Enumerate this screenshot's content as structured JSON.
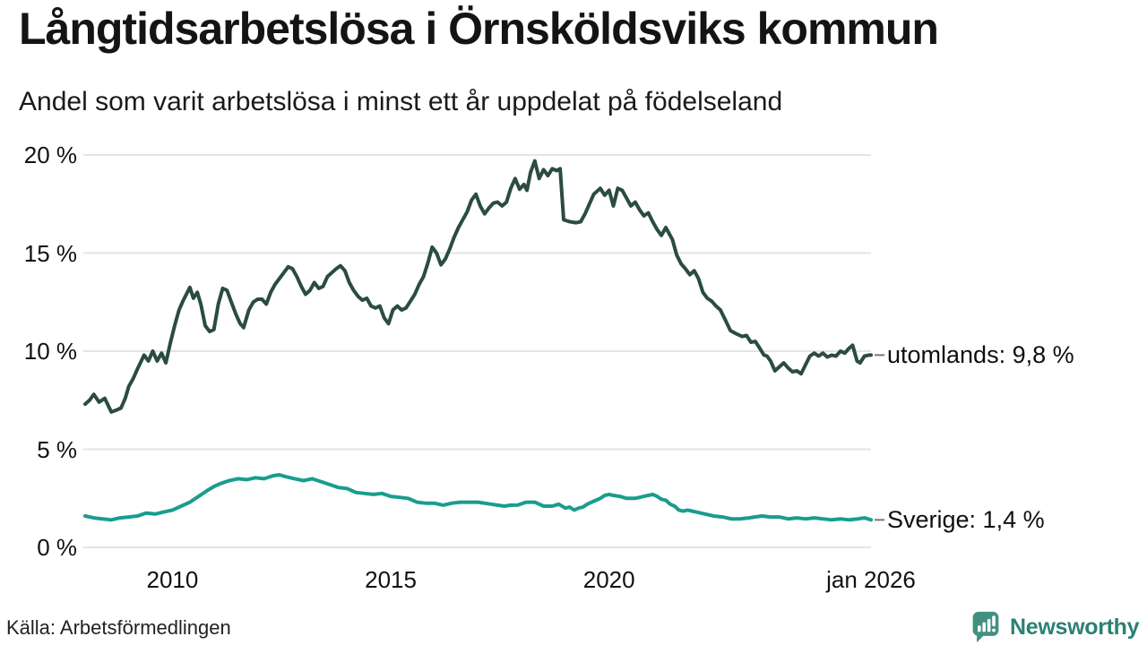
{
  "header": {
    "title": "Långtidsarbetslösa i Örnsköldsviks kommun",
    "subtitle": "Andel som varit arbetslösa i minst ett år uppdelat på födelseland"
  },
  "footer": {
    "source": "Källa: Arbetsförmedlingen",
    "brand": "Newsworthy"
  },
  "colors": {
    "utomlands": "#2b4c40",
    "sverige": "#199d8d",
    "grid": "#e4e4e4",
    "end_dash": "#777777",
    "text": "#111111",
    "brand_icon": "#40917f",
    "brand_text": "#2b8173"
  },
  "chart_data": {
    "type": "line",
    "title": "Långtidsarbetslösa i Örnsköldsviks kommun",
    "subtitle": "Andel som varit arbetslösa i minst ett år uppdelat på födelseland",
    "xlabel": "",
    "ylabel": "",
    "xlim": [
      2008,
      2026.0
    ],
    "ylim": [
      0,
      20
    ],
    "grid": "horizontal-only",
    "yticks": [
      {
        "value": 0,
        "label": "0 %"
      },
      {
        "value": 5,
        "label": "5 %"
      },
      {
        "value": 10,
        "label": "10 %"
      },
      {
        "value": 15,
        "label": "15 %"
      },
      {
        "value": 20,
        "label": "20 %"
      }
    ],
    "xticks": [
      {
        "value": 2010,
        "label": "2010"
      },
      {
        "value": 2015,
        "label": "2015"
      },
      {
        "value": 2020,
        "label": "2020"
      },
      {
        "value": 2026,
        "label": "jan 2026"
      }
    ],
    "series": [
      {
        "name": "utomlands",
        "end_label": "utomlands: 9,8 %",
        "final_value_percent": 9.8,
        "color_key": "utomlands",
        "points": [
          [
            2008.0,
            7.3
          ],
          [
            2008.1,
            7.5
          ],
          [
            2008.2,
            7.8
          ],
          [
            2008.32,
            7.4
          ],
          [
            2008.45,
            7.6
          ],
          [
            2008.6,
            6.9
          ],
          [
            2008.72,
            7.0
          ],
          [
            2008.82,
            7.1
          ],
          [
            2008.92,
            7.6
          ],
          [
            2009.0,
            8.2
          ],
          [
            2009.1,
            8.6
          ],
          [
            2009.2,
            9.1
          ],
          [
            2009.35,
            9.8
          ],
          [
            2009.45,
            9.5
          ],
          [
            2009.55,
            10.0
          ],
          [
            2009.65,
            9.5
          ],
          [
            2009.75,
            9.9
          ],
          [
            2009.85,
            9.4
          ],
          [
            2009.95,
            10.4
          ],
          [
            2010.05,
            11.3
          ],
          [
            2010.15,
            12.1
          ],
          [
            2010.25,
            12.6
          ],
          [
            2010.4,
            13.25
          ],
          [
            2010.48,
            12.7
          ],
          [
            2010.57,
            13.0
          ],
          [
            2010.65,
            12.4
          ],
          [
            2010.75,
            11.3
          ],
          [
            2010.85,
            11.0
          ],
          [
            2010.95,
            11.1
          ],
          [
            2011.05,
            12.4
          ],
          [
            2011.15,
            13.2
          ],
          [
            2011.25,
            13.1
          ],
          [
            2011.35,
            12.5
          ],
          [
            2011.45,
            11.9
          ],
          [
            2011.55,
            11.4
          ],
          [
            2011.63,
            11.2
          ],
          [
            2011.75,
            12.1
          ],
          [
            2011.85,
            12.5
          ],
          [
            2011.95,
            12.65
          ],
          [
            2012.05,
            12.65
          ],
          [
            2012.15,
            12.4
          ],
          [
            2012.25,
            13.0
          ],
          [
            2012.35,
            13.4
          ],
          [
            2012.45,
            13.7
          ],
          [
            2012.55,
            14.0
          ],
          [
            2012.65,
            14.3
          ],
          [
            2012.75,
            14.2
          ],
          [
            2012.85,
            13.8
          ],
          [
            2012.95,
            13.3
          ],
          [
            2013.05,
            12.9
          ],
          [
            2013.15,
            13.1
          ],
          [
            2013.25,
            13.5
          ],
          [
            2013.35,
            13.2
          ],
          [
            2013.45,
            13.3
          ],
          [
            2013.55,
            13.8
          ],
          [
            2013.65,
            14.0
          ],
          [
            2013.75,
            14.2
          ],
          [
            2013.85,
            14.35
          ],
          [
            2013.95,
            14.1
          ],
          [
            2014.05,
            13.5
          ],
          [
            2014.15,
            13.1
          ],
          [
            2014.25,
            12.8
          ],
          [
            2014.35,
            12.6
          ],
          [
            2014.45,
            12.7
          ],
          [
            2014.55,
            12.3
          ],
          [
            2014.65,
            12.2
          ],
          [
            2014.75,
            12.3
          ],
          [
            2014.85,
            11.7
          ],
          [
            2014.95,
            11.4
          ],
          [
            2015.05,
            12.1
          ],
          [
            2015.15,
            12.3
          ],
          [
            2015.25,
            12.1
          ],
          [
            2015.35,
            12.2
          ],
          [
            2015.45,
            12.55
          ],
          [
            2015.55,
            12.9
          ],
          [
            2015.65,
            13.4
          ],
          [
            2015.75,
            13.8
          ],
          [
            2015.85,
            14.5
          ],
          [
            2015.95,
            15.3
          ],
          [
            2016.05,
            15.0
          ],
          [
            2016.15,
            14.4
          ],
          [
            2016.25,
            14.7
          ],
          [
            2016.35,
            15.2
          ],
          [
            2016.45,
            15.8
          ],
          [
            2016.55,
            16.3
          ],
          [
            2016.65,
            16.7
          ],
          [
            2016.75,
            17.1
          ],
          [
            2016.85,
            17.7
          ],
          [
            2016.95,
            18.0
          ],
          [
            2017.05,
            17.4
          ],
          [
            2017.15,
            17.0
          ],
          [
            2017.25,
            17.3
          ],
          [
            2017.35,
            17.55
          ],
          [
            2017.45,
            17.6
          ],
          [
            2017.55,
            17.4
          ],
          [
            2017.65,
            17.6
          ],
          [
            2017.75,
            18.3
          ],
          [
            2017.85,
            18.8
          ],
          [
            2017.95,
            18.25
          ],
          [
            2018.05,
            18.5
          ],
          [
            2018.12,
            18.2
          ],
          [
            2018.2,
            19.1
          ],
          [
            2018.3,
            19.7
          ],
          [
            2018.4,
            18.8
          ],
          [
            2018.5,
            19.25
          ],
          [
            2018.6,
            18.95
          ],
          [
            2018.7,
            19.3
          ],
          [
            2018.8,
            19.2
          ],
          [
            2018.88,
            19.3
          ],
          [
            2018.96,
            16.7
          ],
          [
            2019.1,
            16.6
          ],
          [
            2019.25,
            16.55
          ],
          [
            2019.35,
            16.6
          ],
          [
            2019.45,
            17.0
          ],
          [
            2019.55,
            17.5
          ],
          [
            2019.65,
            18.0
          ],
          [
            2019.8,
            18.3
          ],
          [
            2019.9,
            17.95
          ],
          [
            2020.0,
            18.2
          ],
          [
            2020.1,
            17.4
          ],
          [
            2020.2,
            18.3
          ],
          [
            2020.3,
            18.2
          ],
          [
            2020.4,
            17.8
          ],
          [
            2020.5,
            17.4
          ],
          [
            2020.6,
            17.6
          ],
          [
            2020.7,
            17.2
          ],
          [
            2020.8,
            16.9
          ],
          [
            2020.9,
            17.05
          ],
          [
            2021.0,
            16.6
          ],
          [
            2021.1,
            16.2
          ],
          [
            2021.2,
            15.9
          ],
          [
            2021.3,
            16.3
          ],
          [
            2021.45,
            15.7
          ],
          [
            2021.55,
            14.9
          ],
          [
            2021.65,
            14.45
          ],
          [
            2021.75,
            14.2
          ],
          [
            2021.85,
            13.9
          ],
          [
            2021.95,
            14.1
          ],
          [
            2022.05,
            13.7
          ],
          [
            2022.15,
            13.0
          ],
          [
            2022.25,
            12.7
          ],
          [
            2022.35,
            12.55
          ],
          [
            2022.45,
            12.3
          ],
          [
            2022.55,
            12.1
          ],
          [
            2022.65,
            11.65
          ],
          [
            2022.78,
            11.05
          ],
          [
            2022.9,
            10.9
          ],
          [
            2023.05,
            10.75
          ],
          [
            2023.15,
            10.8
          ],
          [
            2023.25,
            10.45
          ],
          [
            2023.35,
            10.5
          ],
          [
            2023.45,
            10.15
          ],
          [
            2023.55,
            9.8
          ],
          [
            2023.62,
            9.75
          ],
          [
            2023.7,
            9.5
          ],
          [
            2023.8,
            9.0
          ],
          [
            2023.9,
            9.2
          ],
          [
            2024.0,
            9.4
          ],
          [
            2024.1,
            9.15
          ],
          [
            2024.2,
            8.95
          ],
          [
            2024.3,
            9.0
          ],
          [
            2024.4,
            8.85
          ],
          [
            2024.5,
            9.3
          ],
          [
            2024.6,
            9.75
          ],
          [
            2024.7,
            9.9
          ],
          [
            2024.8,
            9.75
          ],
          [
            2024.9,
            9.9
          ],
          [
            2025.0,
            9.7
          ],
          [
            2025.1,
            9.8
          ],
          [
            2025.2,
            9.75
          ],
          [
            2025.3,
            10.0
          ],
          [
            2025.4,
            9.9
          ],
          [
            2025.5,
            10.15
          ],
          [
            2025.58,
            10.3
          ],
          [
            2025.68,
            9.5
          ],
          [
            2025.75,
            9.4
          ],
          [
            2025.85,
            9.75
          ],
          [
            2025.95,
            9.8
          ],
          [
            2026.0,
            9.8
          ]
        ]
      },
      {
        "name": "Sverige",
        "end_label": "Sverige: 1,4 %",
        "final_value_percent": 1.4,
        "color_key": "sverige",
        "points": [
          [
            2008.0,
            1.6
          ],
          [
            2008.2,
            1.5
          ],
          [
            2008.4,
            1.45
          ],
          [
            2008.6,
            1.4
          ],
          [
            2008.8,
            1.5
          ],
          [
            2009.0,
            1.55
          ],
          [
            2009.2,
            1.6
          ],
          [
            2009.4,
            1.75
          ],
          [
            2009.6,
            1.7
          ],
          [
            2009.8,
            1.8
          ],
          [
            2010.0,
            1.9
          ],
          [
            2010.2,
            2.1
          ],
          [
            2010.4,
            2.3
          ],
          [
            2010.6,
            2.6
          ],
          [
            2010.8,
            2.9
          ],
          [
            2010.95,
            3.1
          ],
          [
            2011.1,
            3.25
          ],
          [
            2011.3,
            3.4
          ],
          [
            2011.5,
            3.5
          ],
          [
            2011.7,
            3.45
          ],
          [
            2011.9,
            3.55
          ],
          [
            2012.1,
            3.5
          ],
          [
            2012.3,
            3.65
          ],
          [
            2012.45,
            3.7
          ],
          [
            2012.6,
            3.6
          ],
          [
            2012.8,
            3.5
          ],
          [
            2013.0,
            3.4
          ],
          [
            2013.2,
            3.5
          ],
          [
            2013.4,
            3.35
          ],
          [
            2013.6,
            3.2
          ],
          [
            2013.8,
            3.05
          ],
          [
            2014.0,
            3.0
          ],
          [
            2014.2,
            2.8
          ],
          [
            2014.4,
            2.75
          ],
          [
            2014.6,
            2.7
          ],
          [
            2014.8,
            2.75
          ],
          [
            2015.0,
            2.6
          ],
          [
            2015.2,
            2.55
          ],
          [
            2015.4,
            2.5
          ],
          [
            2015.6,
            2.3
          ],
          [
            2015.8,
            2.25
          ],
          [
            2016.0,
            2.25
          ],
          [
            2016.2,
            2.15
          ],
          [
            2016.4,
            2.25
          ],
          [
            2016.6,
            2.3
          ],
          [
            2016.8,
            2.3
          ],
          [
            2017.0,
            2.3
          ],
          [
            2017.3,
            2.2
          ],
          [
            2017.6,
            2.1
          ],
          [
            2017.75,
            2.15
          ],
          [
            2017.9,
            2.15
          ],
          [
            2018.1,
            2.3
          ],
          [
            2018.3,
            2.3
          ],
          [
            2018.5,
            2.1
          ],
          [
            2018.7,
            2.1
          ],
          [
            2018.85,
            2.2
          ],
          [
            2019.0,
            2.0
          ],
          [
            2019.1,
            2.05
          ],
          [
            2019.2,
            1.9
          ],
          [
            2019.3,
            2.0
          ],
          [
            2019.4,
            2.05
          ],
          [
            2019.5,
            2.2
          ],
          [
            2019.65,
            2.35
          ],
          [
            2019.8,
            2.5
          ],
          [
            2019.9,
            2.65
          ],
          [
            2020.0,
            2.7
          ],
          [
            2020.1,
            2.65
          ],
          [
            2020.25,
            2.6
          ],
          [
            2020.4,
            2.5
          ],
          [
            2020.6,
            2.5
          ],
          [
            2020.8,
            2.6
          ],
          [
            2020.9,
            2.65
          ],
          [
            2021.0,
            2.7
          ],
          [
            2021.1,
            2.6
          ],
          [
            2021.2,
            2.45
          ],
          [
            2021.3,
            2.4
          ],
          [
            2021.4,
            2.2
          ],
          [
            2021.5,
            2.1
          ],
          [
            2021.6,
            1.9
          ],
          [
            2021.7,
            1.85
          ],
          [
            2021.8,
            1.9
          ],
          [
            2021.9,
            1.85
          ],
          [
            2022.0,
            1.8
          ],
          [
            2022.2,
            1.7
          ],
          [
            2022.4,
            1.6
          ],
          [
            2022.6,
            1.55
          ],
          [
            2022.8,
            1.45
          ],
          [
            2023.0,
            1.45
          ],
          [
            2023.2,
            1.5
          ],
          [
            2023.5,
            1.6
          ],
          [
            2023.7,
            1.55
          ],
          [
            2023.9,
            1.55
          ],
          [
            2024.1,
            1.45
          ],
          [
            2024.3,
            1.5
          ],
          [
            2024.5,
            1.45
          ],
          [
            2024.7,
            1.5
          ],
          [
            2024.9,
            1.45
          ],
          [
            2025.1,
            1.4
          ],
          [
            2025.3,
            1.45
          ],
          [
            2025.5,
            1.4
          ],
          [
            2025.7,
            1.45
          ],
          [
            2025.85,
            1.5
          ],
          [
            2026.0,
            1.4
          ]
        ]
      }
    ]
  }
}
